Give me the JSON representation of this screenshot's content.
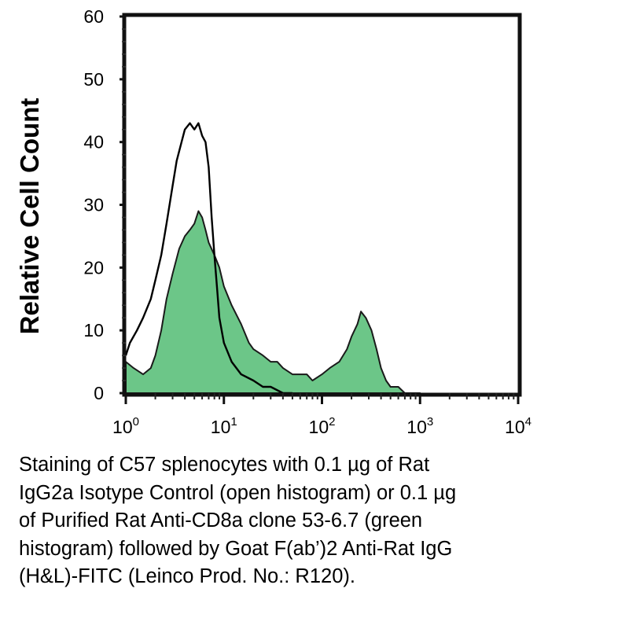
{
  "chart_data": {
    "type": "area",
    "ylabel": "Relative Cell Count",
    "xlabel": "",
    "x_scale": "log",
    "xlim": [
      1,
      10000
    ],
    "ylim": [
      0,
      60
    ],
    "grid": false,
    "x_ticks": [
      {
        "base": "10",
        "exp": "0",
        "value": 1
      },
      {
        "base": "10",
        "exp": "1",
        "value": 10
      },
      {
        "base": "10",
        "exp": "2",
        "value": 100
      },
      {
        "base": "10",
        "exp": "3",
        "value": 1000
      },
      {
        "base": "10",
        "exp": "4",
        "value": 10000
      }
    ],
    "y_ticks": [
      "0",
      "10",
      "20",
      "30",
      "40",
      "50",
      "60"
    ],
    "colors": {
      "filled": "#6cc688",
      "outline": "#000000"
    },
    "series": [
      {
        "style": "open",
        "x": [
          1,
          1.1,
          1.3,
          1.5,
          1.8,
          2.0,
          2.3,
          2.6,
          3.0,
          3.3,
          3.7,
          4.0,
          4.5,
          5.0,
          5.5,
          6.0,
          6.5,
          7.0,
          7.5,
          8.0,
          8.5,
          9.0,
          10,
          12,
          15,
          20,
          25,
          30,
          40,
          50
        ],
        "y": [
          6,
          8,
          10,
          12,
          15,
          18,
          22,
          27,
          33,
          37,
          40,
          42,
          43,
          42,
          43,
          41,
          40,
          36,
          28,
          22,
          17,
          12,
          8,
          5,
          3,
          2,
          1,
          1,
          0,
          0
        ]
      },
      {
        "style": "filled",
        "x": [
          1,
          1.2,
          1.5,
          1.8,
          2.0,
          2.3,
          2.6,
          3.0,
          3.5,
          4.0,
          4.5,
          5.0,
          5.5,
          6.0,
          6.5,
          7.0,
          8.0,
          9.0,
          10,
          12,
          15,
          18,
          20,
          25,
          30,
          35,
          40,
          50,
          60,
          70,
          80,
          100,
          120,
          150,
          180,
          200,
          230,
          250,
          280,
          320,
          360,
          400,
          450,
          500,
          600,
          700,
          800,
          1000
        ],
        "y": [
          5,
          4,
          3,
          4,
          6,
          10,
          15,
          19,
          23,
          25,
          26,
          27,
          29,
          28,
          26,
          24,
          22,
          20,
          17,
          14,
          11,
          8,
          7,
          6,
          5,
          5,
          4,
          3,
          3,
          3,
          2,
          3,
          4,
          5,
          7,
          9,
          11,
          13,
          12,
          10,
          7,
          4,
          2,
          1,
          1,
          0,
          0,
          0
        ]
      }
    ]
  },
  "caption": {
    "lines": [
      "Staining of C57 splenocytes with 0.1 µg of Rat",
      "IgG2a Isotype Control (open histogram) or 0.1 µg",
      "of Purified Rat Anti-CD8a clone 53-6.7 (green",
      "histogram) followed by Goat F(ab’)2 Anti-Rat IgG",
      "(H&L)-FITC (Leinco Prod. No.: R120)."
    ]
  }
}
